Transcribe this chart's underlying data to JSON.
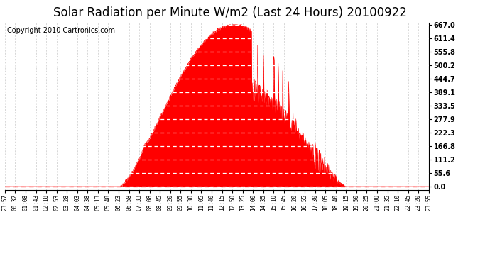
{
  "title": "Solar Radiation per Minute W/m2 (Last 24 Hours) 20100922",
  "copyright": "Copyright 2010 Cartronics.com",
  "yticks": [
    0.0,
    55.6,
    111.2,
    166.8,
    222.3,
    277.9,
    333.5,
    389.1,
    444.7,
    500.2,
    555.8,
    611.4,
    667.0
  ],
  "ymax": 667.0,
  "ymin": 0.0,
  "fill_color": "#ff0000",
  "line_color": "#ff0000",
  "bg_color": "#ffffff",
  "grid_color": "#c8c8c8",
  "title_fontsize": 12,
  "copyright_fontsize": 7,
  "xtick_labels": [
    "23:57",
    "00:32",
    "01:08",
    "01:43",
    "02:18",
    "02:53",
    "03:28",
    "04:03",
    "04:38",
    "05:13",
    "05:48",
    "06:23",
    "06:58",
    "07:33",
    "08:08",
    "08:45",
    "09:20",
    "09:55",
    "10:30",
    "11:05",
    "11:40",
    "12:15",
    "12:50",
    "13:25",
    "14:00",
    "14:35",
    "15:10",
    "15:45",
    "16:20",
    "16:55",
    "17:30",
    "18:05",
    "18:40",
    "19:15",
    "19:50",
    "20:25",
    "21:00",
    "21:35",
    "22:10",
    "22:45",
    "23:20",
    "23:55"
  ]
}
